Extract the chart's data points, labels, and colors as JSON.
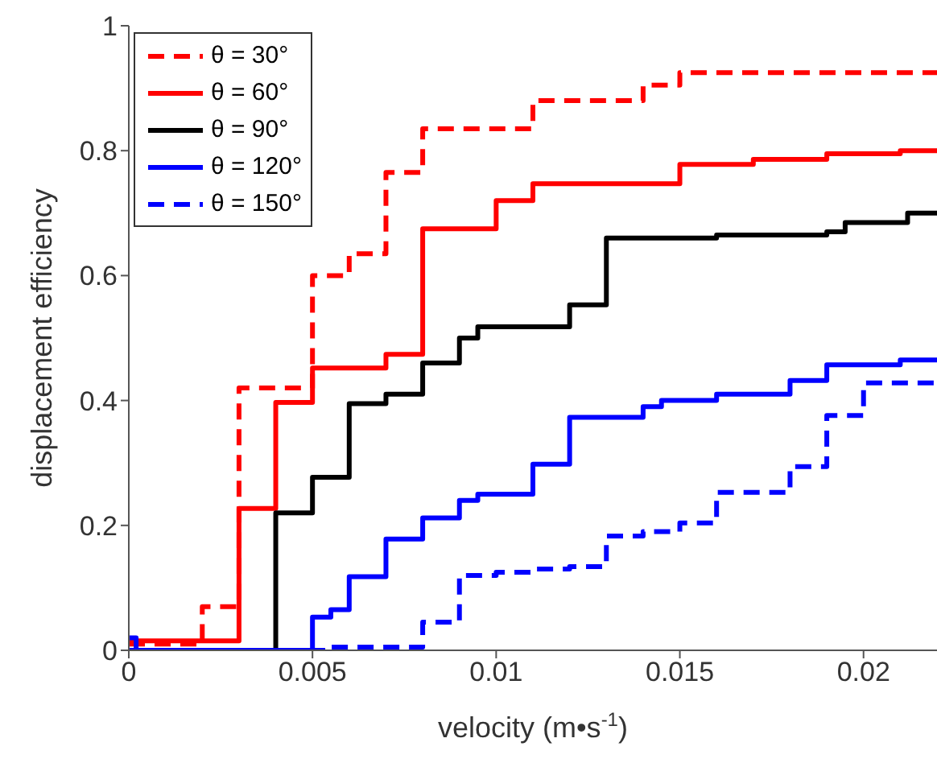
{
  "chart_data": {
    "type": "step",
    "xlabel": "velocity (m•s$^{-1}$)",
    "ylabel": "displacement efficiency",
    "xlim": [
      0,
      0.022
    ],
    "xticks": [
      0,
      0.005,
      0.01,
      0.015,
      0.02
    ],
    "ylim": [
      0,
      1
    ],
    "yticks": [
      0,
      0.2,
      0.4,
      0.6,
      0.8,
      1
    ],
    "legend": "top left",
    "marker": "none",
    "series": [
      {
        "name": "θ = 30°",
        "color": "#ff0000",
        "line_style": "dashed",
        "x": [
          0,
          0.002,
          0.003,
          0.005,
          0.006,
          0.007,
          0.008,
          0.011,
          0.014,
          0.015,
          0.022
        ],
        "values": [
          0.01,
          0.07,
          0.42,
          0.6,
          0.635,
          0.765,
          0.835,
          0.88,
          0.905,
          0.925,
          0.925
        ]
      },
      {
        "name": "θ = 60°",
        "color": "#ff0000",
        "line_style": "solid",
        "x": [
          0,
          0.003,
          0.004,
          0.005,
          0.007,
          0.008,
          0.01,
          0.011,
          0.015,
          0.017,
          0.019,
          0.021,
          0.022
        ],
        "values": [
          0.015,
          0.227,
          0.397,
          0.452,
          0.474,
          0.675,
          0.72,
          0.747,
          0.778,
          0.786,
          0.795,
          0.8,
          0.8
        ]
      },
      {
        "name": "θ = 90°",
        "color": "#000000",
        "line_style": "solid",
        "x": [
          0,
          0.004,
          0.005,
          0.006,
          0.007,
          0.008,
          0.009,
          0.0095,
          0.012,
          0.013,
          0.016,
          0.019,
          0.0195,
          0.0212,
          0.022
        ],
        "values": [
          0,
          0.22,
          0.277,
          0.395,
          0.41,
          0.46,
          0.5,
          0.518,
          0.553,
          0.66,
          0.665,
          0.67,
          0.685,
          0.7,
          0.7
        ]
      },
      {
        "name": "θ = 120°",
        "color": "#0000ff",
        "line_style": "solid",
        "x": [
          0,
          0.0002,
          0.005,
          0.0055,
          0.006,
          0.007,
          0.008,
          0.009,
          0.0095,
          0.011,
          0.012,
          0.014,
          0.0145,
          0.016,
          0.018,
          0.019,
          0.021,
          0.022
        ],
        "values": [
          0.02,
          0,
          0.053,
          0.065,
          0.118,
          0.178,
          0.212,
          0.24,
          0.25,
          0.298,
          0.373,
          0.39,
          0.4,
          0.41,
          0.432,
          0.457,
          0.465,
          0.465
        ]
      },
      {
        "name": "θ = 150°",
        "color": "#0000ff",
        "line_style": "dashed",
        "x": [
          0,
          0.0055,
          0.008,
          0.009,
          0.01,
          0.011,
          0.012,
          0.013,
          0.014,
          0.015,
          0.016,
          0.018,
          0.019,
          0.02,
          0.022
        ],
        "values": [
          0,
          0.005,
          0.045,
          0.12,
          0.125,
          0.13,
          0.134,
          0.183,
          0.19,
          0.204,
          0.253,
          0.294,
          0.376,
          0.428,
          0.435
        ]
      }
    ]
  }
}
